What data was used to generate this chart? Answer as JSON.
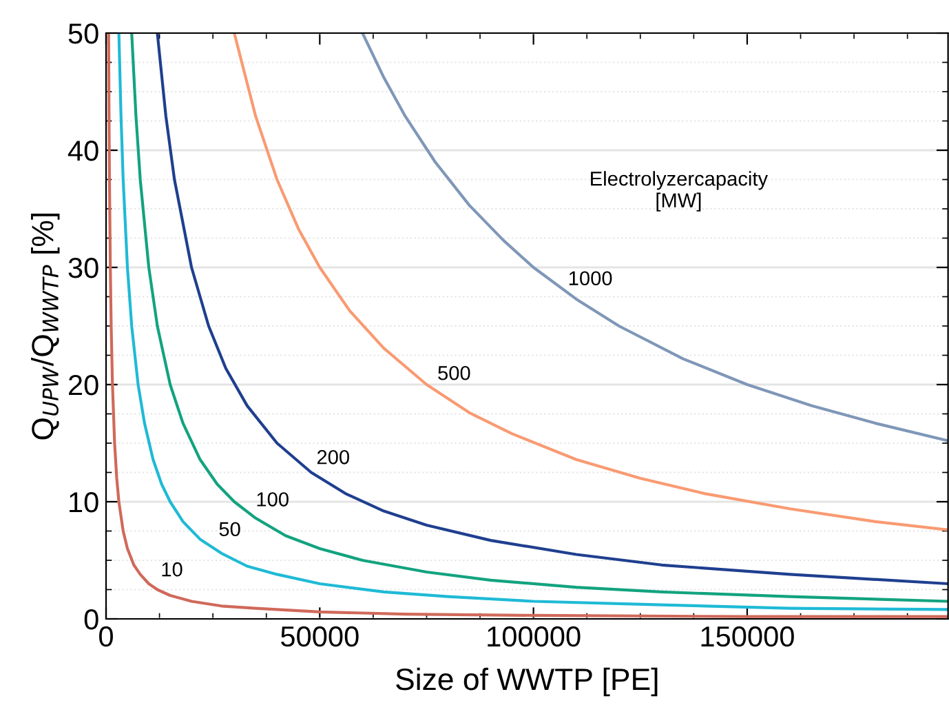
{
  "chart_data": {
    "type": "line",
    "xlabel": "Size of WWTP [PE]",
    "ylabel": "Q$_{UPW}$/Q$_{WWTP}$ [%]",
    "xlim": [
      0,
      197000
    ],
    "xticks": [
      0,
      50000,
      100000,
      150000
    ],
    "ylim": [
      0,
      50
    ],
    "yticks": [
      0,
      10,
      20,
      30,
      40,
      50
    ],
    "grid": "y",
    "legend": false,
    "marker": "none",
    "line_style": "solid",
    "series": [
      {
        "name": "10",
        "color": "#d0695a",
        "x": [
          600,
          700,
          800,
          1000,
          1200,
          1500,
          2000,
          2500,
          3000,
          4000,
          5000,
          6500,
          8000,
          10000,
          12000,
          15000,
          20000,
          27000,
          35000,
          50000,
          70000,
          100000,
          150000,
          197000
        ],
        "values": [
          50,
          42.9,
          37.5,
          30,
          25,
          20,
          15,
          12,
          10,
          7.5,
          6,
          4.6,
          3.8,
          3,
          2.5,
          2,
          1.5,
          1.1,
          0.9,
          0.6,
          0.4,
          0.3,
          0.2,
          0.2
        ]
      },
      {
        "name": "50",
        "color": "#1fbad6",
        "x": [
          3000,
          3500,
          4000,
          5000,
          6000,
          7500,
          9000,
          11000,
          13000,
          15000,
          18000,
          22000,
          27000,
          33000,
          40000,
          50000,
          65000,
          80000,
          100000,
          130000,
          160000,
          197000
        ],
        "values": [
          50,
          42.9,
          37.5,
          30,
          25,
          20,
          16.7,
          13.6,
          11.5,
          10,
          8.3,
          6.8,
          5.6,
          4.5,
          3.8,
          3,
          2.3,
          1.9,
          1.5,
          1.2,
          0.9,
          0.8
        ]
      },
      {
        "name": "100",
        "color": "#12a37f",
        "x": [
          6000,
          7000,
          8000,
          10000,
          12000,
          15000,
          18000,
          22000,
          26000,
          30000,
          35000,
          42000,
          50000,
          60000,
          75000,
          90000,
          110000,
          130000,
          160000,
          197000
        ],
        "values": [
          50,
          42.9,
          37.5,
          30,
          25,
          20,
          16.7,
          13.6,
          11.5,
          10,
          8.6,
          7.1,
          6,
          5,
          4,
          3.3,
          2.7,
          2.3,
          1.9,
          1.5
        ]
      },
      {
        "name": "200",
        "color": "#1f3f8f",
        "x": [
          12000,
          14000,
          16000,
          20000,
          24000,
          28000,
          33000,
          40000,
          48000,
          56000,
          65000,
          75000,
          90000,
          110000,
          130000,
          160000,
          197000
        ],
        "values": [
          50,
          42.9,
          37.5,
          30,
          25,
          21.4,
          18.2,
          15,
          12.5,
          10.7,
          9.2,
          8,
          6.7,
          5.5,
          4.6,
          3.8,
          3.0
        ]
      },
      {
        "name": "500",
        "color": "#f99a72",
        "x": [
          30000,
          35000,
          40000,
          45000,
          50000,
          57000,
          65000,
          75000,
          85000,
          95000,
          110000,
          125000,
          140000,
          160000,
          180000,
          197000
        ],
        "values": [
          50,
          42.9,
          37.5,
          33.3,
          30,
          26.3,
          23.1,
          20,
          17.6,
          15.8,
          13.6,
          12,
          10.7,
          9.4,
          8.3,
          7.6
        ]
      },
      {
        "name": "1000",
        "color": "#7f97b8",
        "x": [
          60000,
          65000,
          70000,
          77000,
          85000,
          93000,
          100000,
          110000,
          120000,
          135000,
          150000,
          165000,
          180000,
          197000
        ],
        "values": [
          50,
          46.2,
          42.9,
          39,
          35.3,
          32.3,
          30,
          27.3,
          25,
          22.2,
          20,
          18.2,
          16.7,
          15.2
        ]
      }
    ],
    "legend_title": "Electrolyzercapacity\n[MW]"
  }
}
